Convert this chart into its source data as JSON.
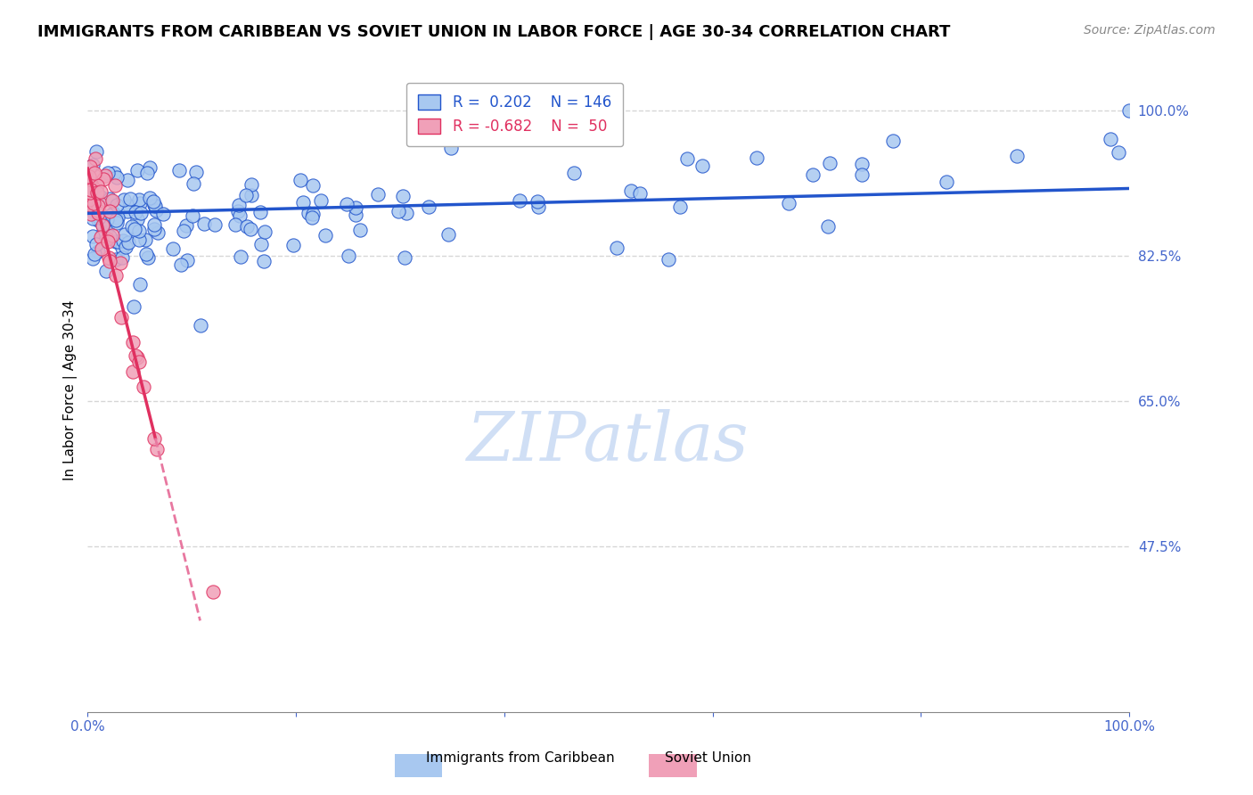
{
  "title": "IMMIGRANTS FROM CARIBBEAN VS SOVIET UNION IN LABOR FORCE | AGE 30-34 CORRELATION CHART",
  "source": "Source: ZipAtlas.com",
  "ylabel": "In Labor Force | Age 30-34",
  "xlim": [
    0.0,
    1.0
  ],
  "ylim": [
    0.275,
    1.05
  ],
  "yticks": [
    0.475,
    0.65,
    0.825,
    1.0
  ],
  "ytick_labels": [
    "47.5%",
    "65.0%",
    "82.5%",
    "100.0%"
  ],
  "legend_R_caribbean": "0.202",
  "legend_N_caribbean": "146",
  "legend_R_soviet": "-0.682",
  "legend_N_soviet": "50",
  "scatter_blue_color": "#a8c8f0",
  "scatter_pink_color": "#f0a0b8",
  "line_blue_color": "#2255cc",
  "line_pink_solid_color": "#e03060",
  "line_pink_dashed_color": "#e878a0",
  "grid_color": "#cccccc",
  "tick_color": "#4466cc",
  "watermark_color": "#d0dff5",
  "title_fontsize": 13,
  "source_fontsize": 10,
  "axis_label_fontsize": 11,
  "tick_fontsize": 11,
  "legend_fontsize": 12
}
